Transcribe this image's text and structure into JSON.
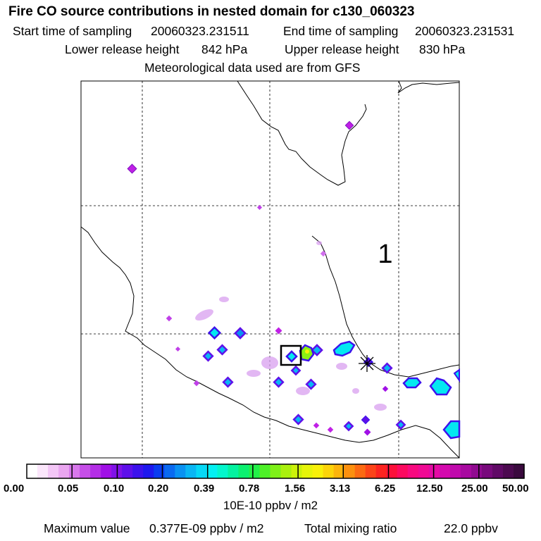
{
  "title": "Fire CO source contributions in nested domain for c130_060323",
  "header": {
    "start_label": "Start time of sampling",
    "start_value": "20060323.231511",
    "end_label": "End time of sampling",
    "end_value": "20060323.231531",
    "lower_label": "Lower release height",
    "lower_value": "842 hPa",
    "upper_label": "Upper release height",
    "upper_value": "830 hPa",
    "met_text": "Meteorological data used are from GFS"
  },
  "map": {
    "feature_label": "1",
    "grid_lines": "dashed",
    "receptor_marker": "asterisk",
    "source_box": "square outline"
  },
  "colorbar": {
    "tick_labels": [
      "0.00",
      "0.05",
      "0.10",
      "0.20",
      "0.39",
      "0.78",
      "1.56",
      "3.13",
      "6.25",
      "12.50",
      "25.00",
      "50.00"
    ],
    "colors": [
      "#ffffff",
      "#fbe6fb",
      "#f3c6f6",
      "#eaa6f0",
      "#d878ec",
      "#c64ee8",
      "#b42ee6",
      "#a010e6",
      "#8012e8",
      "#5e10ea",
      "#3c12ec",
      "#1e18ee",
      "#0a3cf0",
      "#0a6af0",
      "#0a92f2",
      "#0ab6f4",
      "#06d8f6",
      "#04f0f2",
      "#04f6cc",
      "#04f2a0",
      "#0cf070",
      "#22f048",
      "#4ef028",
      "#7ef018",
      "#aaf00e",
      "#ccf20a",
      "#e6f40a",
      "#f8f00a",
      "#fcd40a",
      "#fcb40c",
      "#fc900e",
      "#fc6a12",
      "#fc4418",
      "#fc2420",
      "#fc103a",
      "#fc0a60",
      "#f80a80",
      "#f00a94",
      "#e40aa4",
      "#d40aae",
      "#c00aac",
      "#a80aa0",
      "#900a90",
      "#780a7c",
      "#600a66",
      "#4c0a50",
      "#3a0a3e"
    ],
    "units": "10E-10 ppbv / m2"
  },
  "footer": {
    "max_label": "Maximum value",
    "max_value": "0.377E-09 ppbv / m2",
    "total_label": "Total mixing ratio",
    "total_value": "22.0 ppbv"
  }
}
